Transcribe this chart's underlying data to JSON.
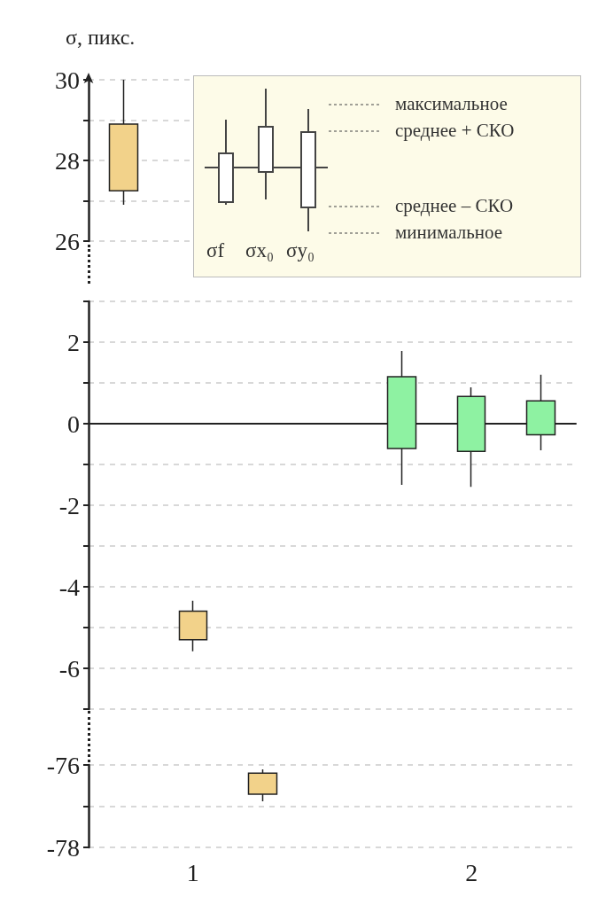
{
  "chart_data": [
    {
      "type": "candlestick",
      "ylabel": "σ, пикс.",
      "annotations": [
        "максимальное",
        "среднее + СКО",
        "среднее – СКО",
        "минимальное",
        "σf",
        "σx₀",
        "σy₀"
      ],
      "categories": [
        null,
        "1",
        null,
        null,
        null,
        "2",
        null
      ],
      "ohlc": [
        [
          27.25,
          30,
          26.9,
          28.9
        ],
        null,
        null,
        null,
        null,
        null,
        null
      ],
      "colors": [
        "#f2d28a",
        null,
        null,
        null,
        null,
        null,
        null
      ],
      "ylim": [
        26,
        30
      ],
      "yticks": [
        26,
        {
          "value": 27,
          "label": null
        },
        28,
        {
          "value": 29,
          "label": null
        },
        30
      ],
      "grid": "y",
      "tick_labels": "y"
    },
    {
      "type": "candlestick",
      "categories": [
        null,
        "1",
        null,
        null,
        null,
        "2",
        null
      ],
      "ohlc": [
        null,
        [
          -5.3,
          -4.34,
          -5.58,
          -4.6
        ],
        null,
        null,
        [
          -0.61,
          1.78,
          -1.5,
          1.15
        ],
        [
          -0.68,
          0.89,
          -1.55,
          0.67
        ],
        [
          -0.27,
          1.2,
          -0.65,
          0.56
        ]
      ],
      "colors": [
        null,
        "#f2d28a",
        null,
        null,
        "#8ef2a2",
        "#8ef2a2",
        "#8ef2a2"
      ],
      "ylim": [
        -7,
        3
      ],
      "yticks": [
        {
          "value": -7,
          "label": null
        },
        -6,
        {
          "value": -5,
          "label": null
        },
        -4,
        {
          "value": -3,
          "label": null
        },
        -2,
        {
          "value": -1,
          "label": null
        },
        0,
        {
          "value": 1,
          "label": null
        },
        2,
        {
          "value": 3,
          "label": null
        }
      ],
      "grid": "y",
      "tick_labels": "y"
    },
    {
      "type": "candlestick",
      "categories": [
        null,
        "1",
        null,
        null,
        null,
        "2",
        null
      ],
      "ohlc": [
        null,
        null,
        [
          -76.71,
          -76.11,
          -76.88,
          -76.2
        ],
        null,
        null,
        null,
        null
      ],
      "colors": [
        null,
        null,
        "#f2d28a",
        null,
        null,
        null,
        null
      ],
      "ylim": [
        -78,
        -76
      ],
      "yticks": [
        -78,
        {
          "value": -77,
          "label": null
        },
        -76
      ],
      "grid": "y"
    }
  ]
}
